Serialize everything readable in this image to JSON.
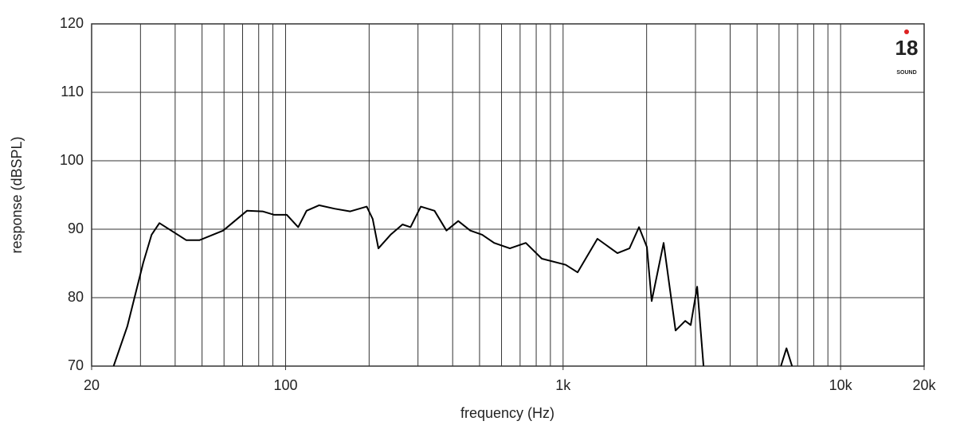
{
  "chart_data": {
    "type": "line",
    "log_x": true,
    "grid": true,
    "x_label": "frequency (Hz)",
    "y_label": "response (dBSPL)",
    "logo": {
      "number": "18",
      "word": "SOUND"
    },
    "xlim": [
      20,
      20000
    ],
    "ylim": [
      70,
      120
    ],
    "xticks": [
      20,
      100,
      {
        "value": 1000,
        "label": "1k"
      },
      {
        "value": 10000,
        "label": "10k"
      },
      {
        "value": 20000,
        "label": "20k"
      }
    ],
    "xminor": [
      30,
      40,
      50,
      60,
      70,
      80,
      90,
      100,
      200,
      300,
      400,
      500,
      600,
      700,
      800,
      900,
      1000,
      2000,
      3000,
      4000,
      5000,
      6000,
      7000,
      8000,
      9000,
      10000
    ],
    "yticks": [
      70,
      80,
      90,
      100,
      110,
      120
    ],
    "series": [
      {
        "color": "#000000",
        "x": [
          24,
          26.9,
          30.7,
          32.9,
          35.1,
          38.7,
          43.9,
          48.9,
          59.6,
          72.6,
          82.6,
          91,
          101,
          111,
          119,
          132,
          150,
          171,
          196,
          206,
          216,
          239,
          264,
          282,
          307,
          344,
          380,
          419,
          463,
          511,
          564,
          643,
          734,
          838,
          1021,
          1128,
          1330,
          1570,
          1734,
          1877,
          2005,
          2086,
          2303,
          2543,
          2754,
          2884,
          3041,
          3206,
          null,
          6095,
          6383,
          6683
        ],
        "values": [
          70,
          75.8,
          85.1,
          89.2,
          90.9,
          89.8,
          88.4,
          88.4,
          89.8,
          92.7,
          92.6,
          92.1,
          92.1,
          90.3,
          92.7,
          93.5,
          93.0,
          92.6,
          93.3,
          91.5,
          87.2,
          89.2,
          90.7,
          90.3,
          93.3,
          92.7,
          89.8,
          91.2,
          89.8,
          89.2,
          88.0,
          87.2,
          88.0,
          85.7,
          84.8,
          83.7,
          88.6,
          86.5,
          87.2,
          90.3,
          87.4,
          79.5,
          88.0,
          75.2,
          76.6,
          76.0,
          81.6,
          70,
          null,
          70,
          72.6,
          70
        ]
      }
    ]
  }
}
